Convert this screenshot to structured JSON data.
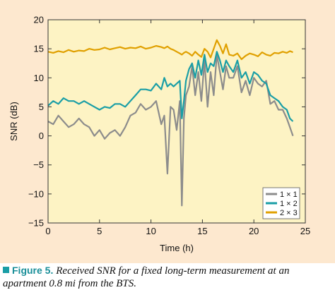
{
  "caption": {
    "label": "Figure 5.",
    "text": "Received SNR for a fixed long-term measurement at an apartment 0.8 mi from the BTS."
  },
  "chart_data": {
    "type": "line",
    "title": "",
    "xlabel": "Time (h)",
    "ylabel": "SNR (dB)",
    "xlim": [
      0,
      25
    ],
    "ylim": [
      -15,
      20
    ],
    "xticks": [
      0,
      5,
      10,
      15,
      20,
      25
    ],
    "yticks": [
      -15,
      -10,
      -5,
      0,
      5,
      10,
      15,
      20
    ],
    "grid": false,
    "legend_position": "bottom-right",
    "plot_background": "#fdf3c4",
    "series": [
      {
        "name": "1 × 1",
        "color": "#8c8c8c",
        "x": [
          0,
          0.5,
          1,
          1.5,
          2,
          2.5,
          3,
          3.5,
          4,
          4.5,
          5,
          5.5,
          6,
          6.5,
          7,
          7.5,
          8,
          8.5,
          9,
          9.5,
          10,
          10.5,
          11,
          11.3,
          11.6,
          11.9,
          12.2,
          12.5,
          12.8,
          13,
          13.2,
          13.4,
          13.7,
          14,
          14.3,
          14.6,
          14.9,
          15.2,
          15.5,
          15.8,
          16.1,
          16.4,
          16.7,
          17,
          17.3,
          17.6,
          18,
          18.4,
          18.8,
          19.2,
          19.6,
          20,
          20.4,
          20.8,
          21.2,
          21.6,
          22,
          22.4,
          22.8,
          23.2,
          23.5,
          23.8
        ],
        "y": [
          2.5,
          2,
          3.5,
          2.5,
          1.5,
          2,
          3,
          2,
          1.5,
          0,
          1,
          -0.5,
          0.5,
          1,
          0,
          1.5,
          3.5,
          4,
          5.5,
          4.5,
          5,
          6,
          2,
          3.5,
          -6.5,
          5,
          4.5,
          1,
          6,
          -12,
          3,
          7,
          8.5,
          12,
          7,
          11,
          6,
          13,
          5,
          11,
          7,
          14,
          11,
          8,
          12,
          10,
          10,
          12,
          7.5,
          9.5,
          7,
          10,
          9,
          8.5,
          9.5,
          5.5,
          6,
          4.5,
          4.5,
          3,
          1.5,
          0
        ]
      },
      {
        "name": "1 × 2",
        "color": "#1a9ea6",
        "x": [
          0,
          0.5,
          1,
          1.5,
          2,
          2.5,
          3,
          3.5,
          4,
          4.5,
          5,
          5.5,
          6,
          6.5,
          7,
          7.5,
          8,
          8.5,
          9,
          9.5,
          10,
          10.5,
          11,
          11.3,
          11.6,
          11.9,
          12.2,
          12.5,
          12.8,
          13,
          13.2,
          13.4,
          13.7,
          14,
          14.3,
          14.6,
          14.9,
          15.2,
          15.5,
          15.8,
          16.1,
          16.4,
          16.7,
          17,
          17.3,
          17.6,
          18,
          18.4,
          18.8,
          19.2,
          19.6,
          20,
          20.4,
          20.8,
          21.2,
          21.6,
          22,
          22.4,
          22.8,
          23.2,
          23.5,
          23.8
        ],
        "y": [
          5.2,
          6,
          5.5,
          6.5,
          6,
          6,
          5.5,
          6,
          5.5,
          5,
          4.5,
          5,
          4.8,
          5.5,
          5.5,
          5,
          6,
          7,
          8,
          8,
          7.8,
          9,
          8,
          10,
          8.5,
          9,
          8.5,
          9,
          9.5,
          3,
          6,
          9.5,
          11.5,
          12.5,
          10,
          13,
          10.5,
          14,
          11,
          12.5,
          12,
          14.5,
          13,
          11,
          13,
          12,
          11,
          13,
          10,
          11,
          9,
          11,
          10.5,
          9.5,
          9,
          7,
          6.5,
          6,
          5,
          4.5,
          3,
          2.5
        ]
      },
      {
        "name": "2 × 3",
        "color": "#e0a000",
        "x": [
          0,
          0.5,
          1,
          1.5,
          2,
          2.5,
          3,
          3.5,
          4,
          4.5,
          5,
          5.5,
          6,
          6.5,
          7,
          7.5,
          8,
          8.5,
          9,
          9.5,
          10,
          10.5,
          11,
          11.3,
          11.6,
          11.9,
          12.2,
          12.5,
          12.8,
          13,
          13.2,
          13.4,
          13.7,
          14,
          14.3,
          14.6,
          14.9,
          15.2,
          15.5,
          15.8,
          16.1,
          16.4,
          16.7,
          17,
          17.3,
          17.6,
          18,
          18.4,
          18.8,
          19.2,
          19.6,
          20,
          20.4,
          20.8,
          21.2,
          21.6,
          22,
          22.4,
          22.8,
          23.2,
          23.5,
          23.8
        ],
        "y": [
          14.5,
          14.3,
          14.6,
          14.4,
          14.8,
          14.5,
          14.7,
          14.6,
          15,
          14.8,
          14.9,
          15.2,
          14.9,
          15.1,
          15.3,
          15,
          15.2,
          15.1,
          15.4,
          15,
          15.2,
          15.5,
          15.3,
          15.1,
          15.4,
          15,
          14.8,
          14.5,
          14.2,
          14,
          14.3,
          14.5,
          14.2,
          13.8,
          14.5,
          14,
          13.6,
          15,
          14.5,
          13.5,
          15,
          16.5,
          15.5,
          14.2,
          15.8,
          14,
          13.8,
          14.2,
          13.2,
          13.8,
          14.2,
          14,
          13.7,
          14.4,
          14,
          13.8,
          14.3,
          14.2,
          14.5,
          14.3,
          14.6,
          14.4
        ]
      }
    ]
  }
}
